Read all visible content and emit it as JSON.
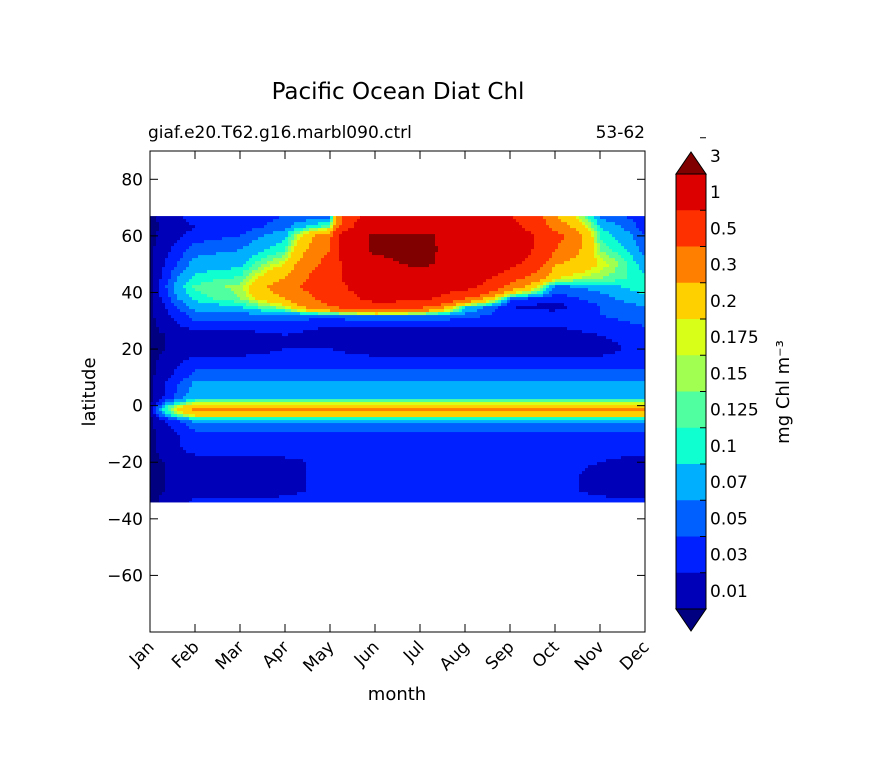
{
  "chart_data": {
    "type": "heatmap",
    "title": "Pacific Ocean Diat Chl",
    "subtitle_left": "giaf.e20.T62.g16.marbl090.ctrl",
    "subtitle_right": "53-62",
    "xlabel": "month",
    "ylabel": "latitude",
    "x_tick_labels": [
      "Jan",
      "Feb",
      "Mar",
      "Apr",
      "May",
      "Jun",
      "Jul",
      "Aug",
      "Sep",
      "Oct",
      "Nov",
      "Dec"
    ],
    "y_tick_values": [
      80,
      60,
      40,
      20,
      0,
      -20,
      -40,
      -60
    ],
    "y_tick_labels": [
      "80",
      "60",
      "40",
      "20",
      "0",
      "−20",
      "−40",
      "−60"
    ],
    "xlim": [
      1,
      12
    ],
    "ylim": [
      -80,
      90
    ],
    "data_lat_range": [
      -34,
      67
    ],
    "colorbar": {
      "label": "mg Chl m⁻³",
      "tick_labels": [
        "0.01",
        "0.03",
        "0.05",
        "0.07",
        "0.1",
        "0.125",
        "0.15",
        "0.175",
        "0.2",
        "0.3",
        "0.5",
        "1",
        "3"
      ],
      "colors": [
        "#000080",
        "#0000b8",
        "#0020ff",
        "#0060ff",
        "#00b0ff",
        "#10ffd0",
        "#50ffa0",
        "#a0ff50",
        "#d8ff18",
        "#ffd000",
        "#ff8000",
        "#ff3000",
        "#dd0000",
        "#800000"
      ],
      "extend": "both"
    },
    "field_grid": {
      "months": [
        1,
        2,
        3,
        4,
        5,
        6,
        7,
        8,
        9,
        10,
        11,
        12
      ],
      "latitudes": [
        -34,
        -30,
        -25,
        -20,
        -15,
        -10,
        -7,
        -5,
        -3,
        -1,
        0,
        1,
        2,
        3,
        5,
        8,
        10,
        15,
        20,
        25,
        28,
        32,
        35,
        38,
        42,
        45,
        50,
        55,
        60,
        63,
        67
      ],
      "values": [
        [
          0.005,
          0.005,
          0.005,
          0.005,
          0.005,
          0.005,
          0.005,
          0.005,
          0.005,
          0.005,
          0.005,
          0.005,
          0.005,
          0.005,
          0.005,
          0.005,
          0.005,
          0.005,
          0.005,
          0.005,
          0.005,
          0.005,
          0.005,
          0.005,
          0.005,
          0.005,
          0.005,
          0.005,
          0.005,
          0.005,
          0.005
        ],
        [
          0.035,
          0.02,
          0.02,
          0.02,
          0.04,
          0.045,
          0.06,
          0.08,
          0.25,
          0.35,
          0.25,
          0.16,
          0.12,
          0.09,
          0.08,
          0.075,
          0.06,
          0.04,
          0.02,
          0.02,
          0.04,
          0.06,
          0.08,
          0.11,
          0.13,
          0.11,
          0.08,
          0.06,
          0.04,
          0.03,
          0.04
        ],
        [
          0.035,
          0.02,
          0.02,
          0.02,
          0.04,
          0.045,
          0.06,
          0.08,
          0.25,
          0.35,
          0.25,
          0.16,
          0.12,
          0.09,
          0.08,
          0.075,
          0.06,
          0.04,
          0.02,
          0.02,
          0.04,
          0.06,
          0.1,
          0.15,
          0.16,
          0.13,
          0.09,
          0.07,
          0.05,
          0.04,
          0.04
        ],
        [
          0.035,
          0.025,
          0.025,
          0.025,
          0.04,
          0.045,
          0.06,
          0.08,
          0.25,
          0.35,
          0.25,
          0.16,
          0.12,
          0.09,
          0.08,
          0.075,
          0.06,
          0.04,
          0.03,
          0.03,
          0.04,
          0.06,
          0.18,
          0.3,
          0.4,
          0.3,
          0.2,
          0.12,
          0.09,
          0.06,
          0.05
        ],
        [
          0.04,
          0.035,
          0.035,
          0.035,
          0.04,
          0.045,
          0.06,
          0.08,
          0.25,
          0.35,
          0.25,
          0.16,
          0.12,
          0.09,
          0.08,
          0.075,
          0.06,
          0.04,
          0.03,
          0.02,
          0.03,
          0.06,
          0.5,
          0.6,
          0.7,
          0.7,
          0.6,
          0.5,
          0.4,
          0.15,
          0.05
        ],
        [
          0.04,
          0.04,
          0.04,
          0.04,
          0.04,
          0.045,
          0.06,
          0.08,
          0.25,
          0.35,
          0.25,
          0.16,
          0.12,
          0.09,
          0.08,
          0.075,
          0.06,
          0.04,
          0.02,
          0.02,
          0.03,
          0.07,
          0.8,
          1.2,
          1.5,
          1.8,
          2.2,
          3.5,
          3.5,
          1.8,
          1.5
        ],
        [
          0.04,
          0.04,
          0.04,
          0.04,
          0.04,
          0.045,
          0.06,
          0.08,
          0.25,
          0.35,
          0.25,
          0.16,
          0.12,
          0.09,
          0.08,
          0.075,
          0.06,
          0.04,
          0.02,
          0.02,
          0.03,
          0.07,
          0.6,
          1.2,
          1.5,
          1.8,
          3.5,
          3.5,
          3.5,
          1.8,
          1.5
        ],
        [
          0.04,
          0.04,
          0.04,
          0.04,
          0.04,
          0.045,
          0.06,
          0.08,
          0.25,
          0.35,
          0.25,
          0.16,
          0.12,
          0.09,
          0.08,
          0.075,
          0.06,
          0.04,
          0.02,
          0.02,
          0.03,
          0.06,
          0.1,
          0.5,
          1.2,
          1.5,
          1.8,
          2.2,
          2.0,
          1.8,
          1.5
        ],
        [
          0.04,
          0.04,
          0.04,
          0.04,
          0.04,
          0.045,
          0.06,
          0.08,
          0.25,
          0.35,
          0.25,
          0.16,
          0.12,
          0.09,
          0.08,
          0.075,
          0.06,
          0.04,
          0.02,
          0.02,
          0.03,
          0.04,
          0.03,
          0.06,
          0.4,
          0.6,
          1.2,
          1.5,
          1.5,
          1.2,
          1.0
        ],
        [
          0.04,
          0.035,
          0.035,
          0.035,
          0.04,
          0.045,
          0.06,
          0.08,
          0.25,
          0.35,
          0.25,
          0.16,
          0.12,
          0.09,
          0.08,
          0.075,
          0.06,
          0.04,
          0.02,
          0.02,
          0.03,
          0.04,
          0.02,
          0.04,
          0.06,
          0.2,
          0.3,
          0.5,
          0.6,
          0.4,
          0.3
        ],
        [
          0.035,
          0.025,
          0.025,
          0.03,
          0.04,
          0.045,
          0.06,
          0.08,
          0.25,
          0.35,
          0.25,
          0.16,
          0.12,
          0.09,
          0.08,
          0.075,
          0.06,
          0.04,
          0.02,
          0.03,
          0.04,
          0.05,
          0.05,
          0.06,
          0.08,
          0.15,
          0.2,
          0.15,
          0.12,
          0.1,
          0.06
        ],
        [
          0.035,
          0.02,
          0.02,
          0.02,
          0.04,
          0.045,
          0.06,
          0.08,
          0.25,
          0.35,
          0.25,
          0.16,
          0.12,
          0.09,
          0.08,
          0.075,
          0.06,
          0.04,
          0.04,
          0.04,
          0.05,
          0.06,
          0.07,
          0.09,
          0.12,
          0.11,
          0.08,
          0.06,
          0.05,
          0.04,
          0.04
        ]
      ]
    },
    "grid": false,
    "legend": "colorbar-right"
  }
}
